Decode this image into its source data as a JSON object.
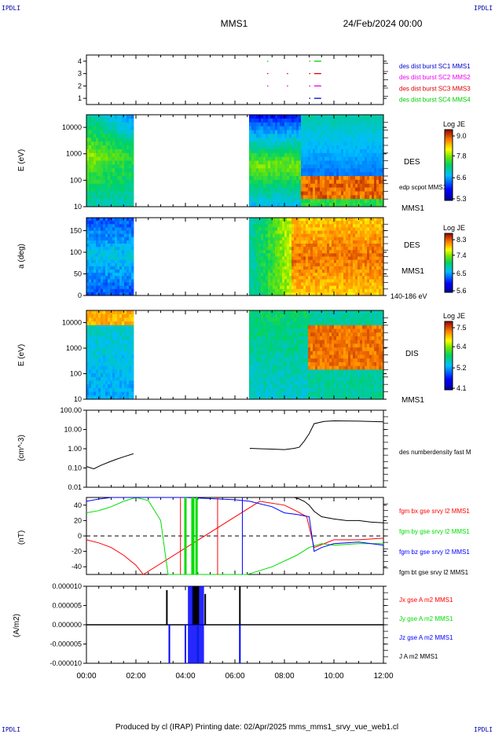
{
  "header": {
    "corner_tl": "IPDLI",
    "corner_tr": "IPDLI",
    "corner_bl": "IPDLI",
    "corner_br": "IPDLI",
    "mission": "MMS1",
    "date": "24/Feb/2024 00:00",
    "footer": "Produced by cl (IRAP)   Printing date: 02/Apr/2025   mms_mms1_srvy_vue_web1.cl"
  },
  "colors": {
    "red": "#ff0000",
    "green": "#00dd00",
    "blue": "#0000ff",
    "black": "#000000",
    "magenta": "#ee00ee"
  },
  "chart_data": [
    {
      "type": "scatter",
      "name": "burst availability",
      "x_ticks": [
        "00:00",
        "02:00",
        "04:00",
        "06:00",
        "08:00",
        "10:00",
        "12:00"
      ],
      "xlim_hours": [
        0,
        12
      ],
      "ylim": [
        0.5,
        4.5
      ],
      "y_ticks": [
        "1",
        "2",
        "3",
        "4"
      ],
      "series": [
        {
          "name": "des dist burst SC1 MMS1",
          "y": 1,
          "color": "#0000cc",
          "x": [
            9.0,
            9.2
          ]
        },
        {
          "name": "des dist burst SC2 MMS2",
          "y": 2,
          "color": "#ee00ee",
          "x": [
            7.3,
            8.1,
            9.0,
            9.2
          ]
        },
        {
          "name": "des dist burst SC3 MMS3",
          "y": 3,
          "color": "#dd0000",
          "x": [
            7.3,
            8.1,
            9.0,
            9.2
          ]
        },
        {
          "name": "des dist burst SC4 MMS4",
          "y": 4,
          "color": "#00cc00",
          "x": [
            7.3,
            9.0,
            9.2
          ]
        }
      ]
    },
    {
      "type": "heatmap",
      "name": "DES energy spectrogram",
      "ylabel": "E (eV)",
      "y_ticks": [
        "10",
        "100",
        "1000",
        "10000"
      ],
      "ylim": [
        10,
        30000
      ],
      "log_y": true,
      "right_labels": [
        "DES",
        "edp scpot MMS1",
        "MMS1"
      ],
      "colorbar": {
        "label": "Log JE",
        "ticks": [
          "9.0",
          "7.8",
          "6.6",
          "5.3"
        ]
      },
      "data_gaps_hours": [
        [
          1.9,
          6.6
        ]
      ]
    },
    {
      "type": "heatmap",
      "name": "DES pitch angle",
      "ylabel": "a (deg)",
      "y_ticks": [
        "0",
        "50",
        "100",
        "150"
      ],
      "ylim": [
        0,
        180
      ],
      "right_labels": [
        "DES",
        "MMS1",
        "140-186 eV"
      ],
      "colorbar": {
        "label": "Log JE",
        "ticks": [
          "8.3",
          "7.4",
          "6.5",
          "5.6"
        ]
      },
      "data_gaps_hours": [
        [
          1.9,
          6.6
        ]
      ]
    },
    {
      "type": "heatmap",
      "name": "DIS energy spectrogram",
      "ylabel": "E (eV)",
      "y_ticks": [
        "10",
        "100",
        "1000",
        "10000"
      ],
      "ylim": [
        10,
        30000
      ],
      "log_y": true,
      "right_labels": [
        "DIS",
        "MMS1"
      ],
      "colorbar": {
        "label": "Log JE",
        "ticks": [
          "7.5",
          "6.4",
          "5.2",
          "4.1"
        ]
      },
      "data_gaps_hours": [
        [
          1.9,
          6.6
        ]
      ]
    },
    {
      "type": "line",
      "name": "density",
      "ylabel": "(cm^-3)",
      "log_y": true,
      "y_ticks": [
        "100.00",
        "10.00",
        "1.00",
        "0.10",
        "0.01"
      ],
      "ylim": [
        0.01,
        100
      ],
      "series": [
        {
          "name": "des numberdensity fast M",
          "color": "#000000",
          "x": [
            0.0,
            0.3,
            0.6,
            0.9,
            1.2,
            1.5,
            1.9,
            6.6,
            7.0,
            7.5,
            8.0,
            8.4,
            8.6,
            8.8,
            9.0,
            9.2,
            9.6,
            10.0,
            11.0,
            12.0
          ],
          "y": [
            0.12,
            0.09,
            0.14,
            0.2,
            0.28,
            0.38,
            0.55,
            1.05,
            1.0,
            0.95,
            0.9,
            1.05,
            1.2,
            2.5,
            6.0,
            20.0,
            26.0,
            28.0,
            27.0,
            25.0
          ]
        }
      ]
    },
    {
      "type": "line",
      "name": "magnetic field",
      "ylabel": "(nT)",
      "y_ticks": [
        "40",
        "20",
        "0",
        "-20",
        "-40"
      ],
      "ylim": [
        -50,
        50
      ],
      "series": [
        {
          "name": "fgm bx gse srvy l2 MMS1",
          "color": "#ff0000",
          "x": [
            0.0,
            0.5,
            1.0,
            1.5,
            2.0,
            2.3,
            7.0,
            8.0,
            8.5,
            8.9,
            9.2,
            10.0,
            11.0,
            12.0
          ],
          "y": [
            -5,
            -9,
            -15,
            -25,
            -38,
            -50,
            45,
            40,
            32,
            25,
            -15,
            -5,
            -5,
            -3
          ]
        },
        {
          "name": "fgm by gse srvy l2 MMS1",
          "color": "#00dd00",
          "x": [
            0.0,
            0.5,
            1.0,
            1.5,
            2.0,
            2.5,
            3.0,
            3.3,
            6.5,
            7.5,
            8.5,
            9.0,
            9.5,
            10.0,
            11.0,
            12.0
          ],
          "y": [
            30,
            33,
            38,
            45,
            50,
            46,
            20,
            -50,
            -50,
            -40,
            -25,
            -15,
            -10,
            -12,
            -10,
            -10
          ]
        },
        {
          "name": "fgm bz gse srvy l2 MMS1",
          "color": "#0000ff",
          "x": [
            0.0,
            0.5,
            1.0,
            2.0,
            4.0,
            6.0,
            6.6,
            7.5,
            8.0,
            8.5,
            9.0,
            9.2,
            9.5,
            10.0,
            11.0,
            12.0
          ],
          "y": [
            45,
            48,
            50,
            50,
            50,
            47,
            45,
            38,
            30,
            28,
            25,
            -20,
            -15,
            -10,
            -8,
            -12
          ]
        },
        {
          "name": "fgm bt gse srvy l2 MMS1",
          "color": "#000000",
          "x": [
            8.4,
            8.6,
            8.8,
            9.0,
            9.2,
            9.5,
            10.0,
            10.5,
            11.0,
            11.5,
            12.0
          ],
          "y": [
            50,
            48,
            45,
            40,
            32,
            25,
            22,
            20,
            20,
            18,
            17
          ]
        }
      ]
    },
    {
      "type": "line",
      "name": "current density",
      "ylabel": "(A/m2)",
      "y_ticks": [
        "0.000010",
        "0.000005",
        "0.000000",
        "-0.000005",
        "-0.000010"
      ],
      "ylim": [
        -1e-05,
        1e-05
      ],
      "series": [
        {
          "name": "Jx gse A m2 MMS1",
          "color": "#ff0000"
        },
        {
          "name": "Jy gse A m2 MMS1",
          "color": "#00dd00"
        },
        {
          "name": "Jz gse A m2 MMS1",
          "color": "#0000ff"
        },
        {
          "name": "J A m2 MMS1",
          "color": "#000000"
        }
      ],
      "spikes": [
        {
          "x": 3.25,
          "color": "#000000",
          "y": 9e-06
        },
        {
          "x": 3.35,
          "color": "#0000ff",
          "y": -1e-05
        },
        {
          "x": 4.0,
          "color": "#0000ff",
          "y": -1e-05
        },
        {
          "x": 4.3,
          "color": "#000000",
          "y": 1e-05
        },
        {
          "x": 4.5,
          "color": "#00dd00",
          "y": -1e-05
        },
        {
          "x": 4.8,
          "color": "#000000",
          "y": 8e-06
        },
        {
          "x": 6.2,
          "color": "#000000",
          "y": 1e-05
        },
        {
          "x": 6.2,
          "color": "#0000ff",
          "y": -1e-05
        }
      ]
    }
  ]
}
